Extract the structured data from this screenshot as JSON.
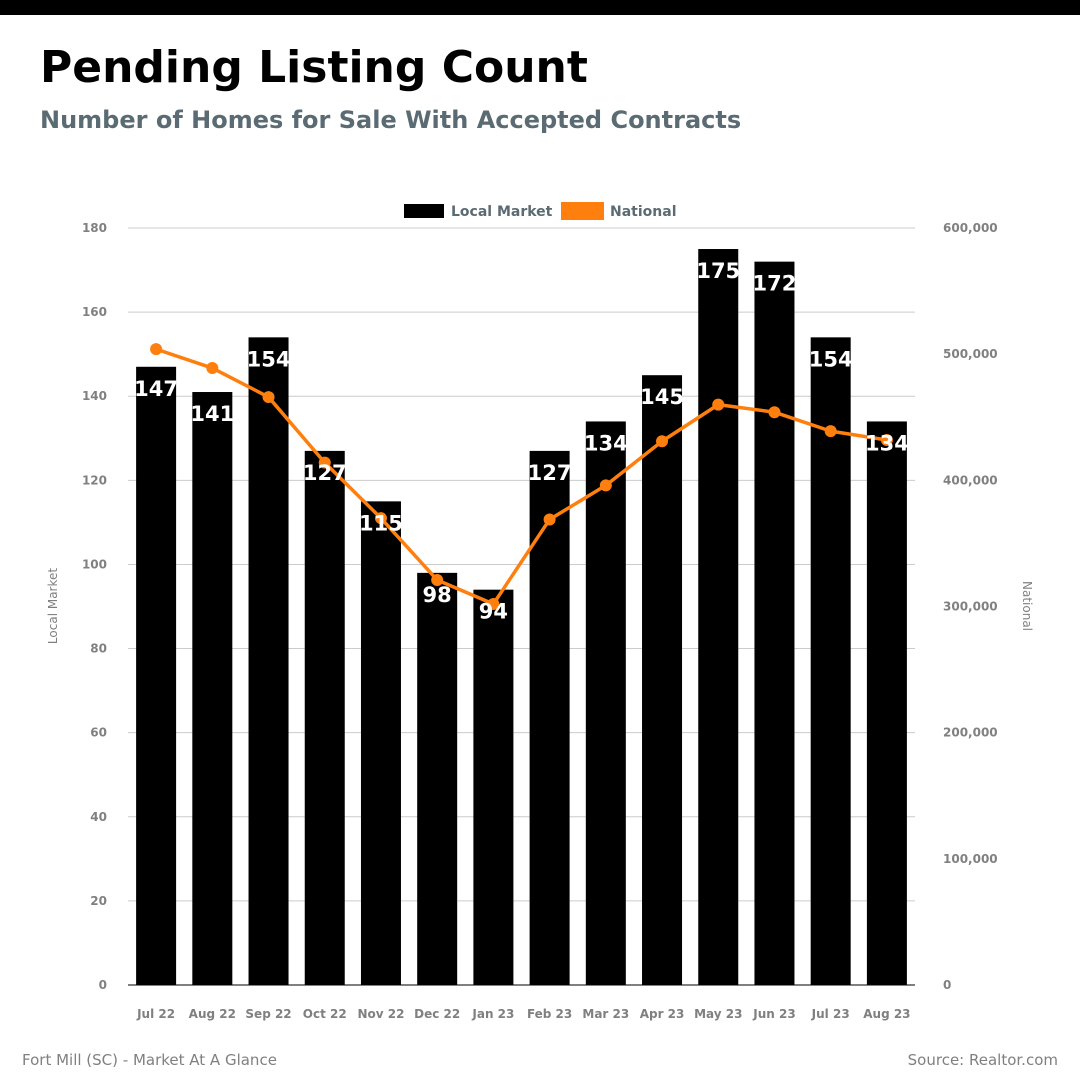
{
  "header": {
    "title": "Pending Listing Count",
    "subtitle": "Number of Homes for Sale With Accepted Contracts"
  },
  "footer": {
    "left": "Fort Mill (SC) - Market At A Glance",
    "right": "Source: Realtor.com"
  },
  "colors": {
    "bar": "#000000",
    "line": "#ff7f0e",
    "grid": "#cccccc",
    "tick": "#808080",
    "legend_text": "#5b6b73",
    "bar_label": "#ffffff"
  },
  "chart_data": {
    "type": "bar",
    "categories": [
      "Jul 22",
      "Aug 22",
      "Sep 22",
      "Oct 22",
      "Nov 22",
      "Dec 22",
      "Jan 23",
      "Feb 23",
      "Mar 23",
      "Apr 23",
      "May 23",
      "Jun 23",
      "Jul 23",
      "Aug 23"
    ],
    "series": [
      {
        "name": "Local Market",
        "type": "bar",
        "axis": "left",
        "values": [
          147,
          141,
          154,
          127,
          115,
          98,
          94,
          127,
          134,
          145,
          175,
          172,
          154,
          134
        ]
      },
      {
        "name": "National",
        "type": "line",
        "axis": "right",
        "values": [
          504000,
          489000,
          466000,
          414000,
          370000,
          321000,
          302000,
          369000,
          396000,
          431000,
          460000,
          454000,
          439000,
          432000
        ]
      }
    ],
    "ylabel": "Local Market",
    "y2label": "National",
    "ylim": [
      0,
      180
    ],
    "y2lim": [
      0,
      600000
    ],
    "yticks": [
      "0",
      "20",
      "40",
      "60",
      "80",
      "100",
      "120",
      "140",
      "160",
      "180"
    ],
    "y2ticks": [
      "0",
      "100,000",
      "200,000",
      "300,000",
      "400,000",
      "500,000",
      "600,000"
    ],
    "grid": true,
    "legend_position": "top-center"
  }
}
